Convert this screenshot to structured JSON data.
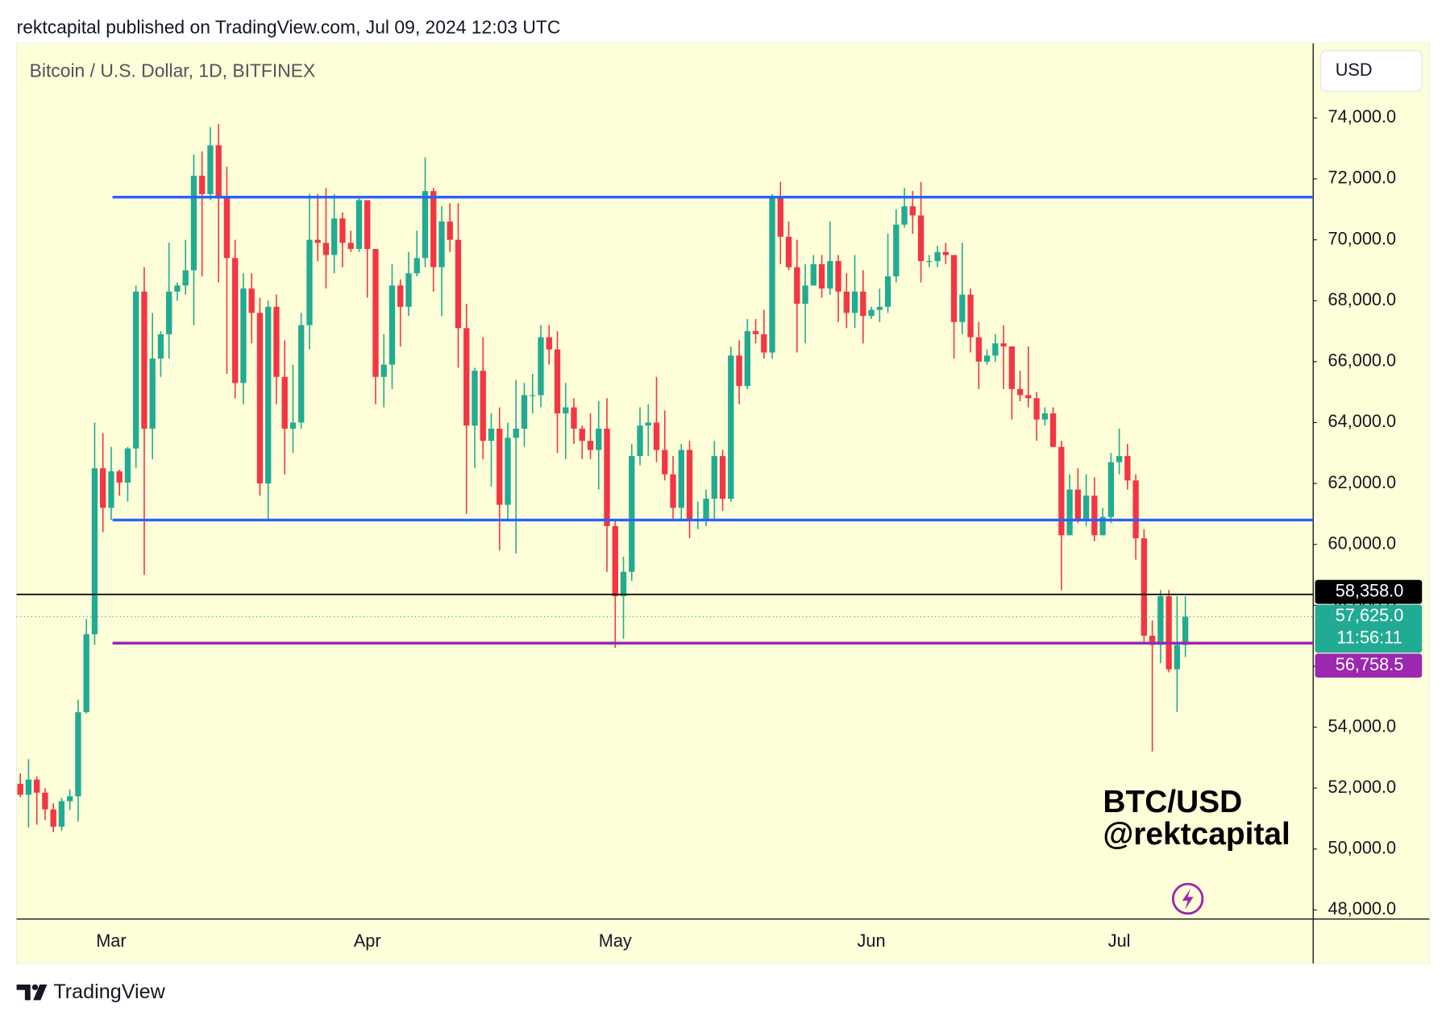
{
  "header": "rektcapital published on TradingView.com, Jul 09, 2024 12:03 UTC",
  "footer": "TradingView",
  "chart_data": {
    "type": "candlestick",
    "title": "Bitcoin / U.S. Dollar, 1D, BITFINEX",
    "currency": "USD",
    "annotations": [
      "BTC/USD",
      "@rektcapital"
    ],
    "up_color": "#22ab94",
    "down_color": "#f23645",
    "background": "#fefed8",
    "grid": false,
    "categories": [
      null,
      null,
      null,
      null,
      null,
      null,
      null,
      null,
      null,
      null,
      null,
      "Mar",
      null,
      null,
      null,
      null,
      null,
      null,
      null,
      null,
      null,
      null,
      null,
      null,
      null,
      null,
      null,
      null,
      null,
      null,
      null,
      null,
      null,
      null,
      null,
      null,
      null,
      null,
      null,
      null,
      null,
      null,
      "Apr",
      null,
      null,
      null,
      null,
      null,
      null,
      null,
      null,
      null,
      null,
      null,
      null,
      null,
      null,
      null,
      null,
      null,
      null,
      null,
      null,
      null,
      null,
      null,
      null,
      null,
      null,
      null,
      null,
      null,
      "May",
      null,
      null,
      null,
      null,
      null,
      null,
      null,
      null,
      null,
      null,
      null,
      null,
      null,
      null,
      null,
      null,
      null,
      null,
      null,
      null,
      null,
      null,
      null,
      null,
      null,
      null,
      null,
      null,
      null,
      null,
      "Jun",
      null,
      null,
      null,
      null,
      null,
      null,
      null,
      null,
      null,
      null,
      null,
      null,
      null,
      null,
      null,
      null,
      null,
      null,
      null,
      null,
      null,
      null,
      null,
      null,
      null,
      null,
      null,
      null,
      null,
      "Jul",
      null,
      null,
      null,
      null,
      null,
      null,
      null,
      null
    ],
    "open": [
      52140,
      51780,
      52280,
      51850,
      51300,
      50730,
      51570,
      51730,
      54490,
      57050,
      62500,
      61200,
      62400,
      62030,
      63150,
      68300,
      63800,
      66100,
      66900,
      68300,
      68500,
      69000,
      72100,
      71500,
      73100,
      71400,
      69400,
      65300,
      68400,
      67600,
      62000,
      67800,
      65500,
      63800,
      64000,
      67200,
      70000,
      69900,
      69500,
      70700,
      69900,
      69700,
      71300,
      69700,
      65500,
      65900,
      68500,
      67800,
      68900,
      69400,
      71600,
      69100,
      70600,
      70000,
      67100,
      63900,
      65700,
      63400,
      63800,
      61300,
      63500,
      63800,
      64900,
      64900,
      66800,
      66400,
      64300,
      64500,
      63800,
      63400,
      63100,
      63800,
      60600,
      58300,
      59100,
      62900,
      63900,
      64000,
      63100,
      62300,
      61200,
      63100,
      60800,
      60800,
      61500,
      62900,
      61500,
      66200,
      65200,
      67000,
      66900,
      66300,
      71400,
      70100,
      69100,
      67900,
      68500,
      69200,
      68400,
      69300,
      68300,
      67600,
      68300,
      67500,
      67700,
      67800,
      68800,
      70500,
      71100,
      70800,
      69300,
      69300,
      69600,
      69500,
      67300,
      68200,
      66800,
      66000,
      66200,
      66600,
      66500,
      65100,
      64900,
      64800,
      64100,
      64300,
      63200,
      60300,
      61800,
      60800,
      61600,
      60300,
      60900,
      62700,
      62900,
      62100,
      60200,
      57000,
      56700,
      58300,
      55900,
      56700
    ],
    "high": [
      52480,
      52950,
      52380,
      52000,
      51500,
      51680,
      51950,
      54900,
      57550,
      64000,
      63650,
      63200,
      62450,
      63200,
      68500,
      69100,
      67600,
      67000,
      69900,
      68600,
      70000,
      72800,
      72900,
      73700,
      73800,
      72400,
      70000,
      68900,
      68900,
      68100,
      68000,
      68200,
      66700,
      65900,
      67600,
      71500,
      71500,
      71700,
      71500,
      70900,
      70300,
      71400,
      71300,
      69700,
      66900,
      69200,
      68700,
      69600,
      70300,
      72700,
      71700,
      71100,
      71200,
      71200,
      67900,
      65800,
      66800,
      64300,
      64500,
      64000,
      65400,
      65300,
      65600,
      67200,
      67200,
      67000,
      65300,
      64800,
      63900,
      64300,
      64700,
      64800,
      60800,
      59600,
      63300,
      64500,
      64600,
      65500,
      64400,
      62900,
      63300,
      63400,
      61400,
      61800,
      63400,
      63100,
      66500,
      66700,
      67400,
      67400,
      67700,
      71500,
      71900,
      70600,
      70000,
      69200,
      69500,
      69500,
      70600,
      69500,
      68900,
      69500,
      69000,
      67800,
      68400,
      70200,
      71000,
      71700,
      71600,
      71900,
      69500,
      69800,
      69900,
      69500,
      69900,
      68400,
      67300,
      66400,
      66900,
      67200,
      66500,
      65700,
      66500,
      65000,
      64500,
      64500,
      63400,
      62300,
      62500,
      62300,
      62200,
      61200,
      63000,
      63800,
      63300,
      62300,
      60500,
      57500,
      58500,
      58500,
      58300,
      58300
    ],
    "low": [
      51700,
      50700,
      50800,
      50950,
      50550,
      50600,
      51280,
      50900,
      54450,
      56700,
      60400,
      60800,
      61600,
      61400,
      62500,
      59000,
      62800,
      65500,
      66100,
      68000,
      68200,
      67200,
      68800,
      71300,
      68600,
      65600,
      64800,
      64600,
      66600,
      61600,
      60800,
      64600,
      62300,
      63000,
      63800,
      66400,
      69300,
      68400,
      68900,
      69100,
      69600,
      69600,
      68100,
      64600,
      64500,
      65100,
      66500,
      67500,
      68800,
      69100,
      68300,
      67500,
      69600,
      65800,
      61000,
      62500,
      62800,
      61900,
      59800,
      60800,
      59700,
      63200,
      64300,
      64500,
      65900,
      63000,
      62800,
      63300,
      62800,
      62800,
      61800,
      59100,
      56600,
      56900,
      58800,
      62600,
      62900,
      62700,
      62100,
      60800,
      60800,
      60200,
      60500,
      60600,
      60800,
      61100,
      61400,
      64600,
      65100,
      66600,
      66100,
      66100,
      69200,
      69000,
      66300,
      66600,
      68500,
      68100,
      68200,
      67300,
      67100,
      67100,
      66600,
      67400,
      67300,
      67600,
      68600,
      70400,
      70200,
      68600,
      69100,
      69100,
      69200,
      66100,
      66900,
      66300,
      65100,
      65900,
      66000,
      65100,
      64100,
      64700,
      64500,
      63400,
      63900,
      63200,
      58500,
      60300,
      60700,
      60600,
      60100,
      60300,
      60700,
      62300,
      61800,
      59500,
      56800,
      53200,
      56100,
      55800,
      54500,
      56300
    ],
    "close": [
      51780,
      52280,
      51850,
      51300,
      50730,
      51570,
      51730,
      54490,
      57050,
      62500,
      61200,
      62400,
      62030,
      63150,
      68300,
      63800,
      66100,
      66900,
      68300,
      68500,
      69000,
      72100,
      71500,
      73100,
      71400,
      69400,
      65300,
      68400,
      67600,
      62000,
      67800,
      65500,
      63800,
      64000,
      67200,
      70000,
      69900,
      69500,
      70700,
      69900,
      69700,
      71300,
      69700,
      65500,
      65900,
      68500,
      67800,
      68900,
      69400,
      71600,
      69100,
      70600,
      70000,
      67100,
      63900,
      65700,
      63400,
      63800,
      61300,
      63500,
      63800,
      64900,
      64900,
      66800,
      66400,
      64300,
      64500,
      63800,
      63400,
      63100,
      63800,
      60600,
      58300,
      59100,
      62900,
      63900,
      64000,
      63100,
      62300,
      61200,
      63100,
      60800,
      60800,
      61500,
      62900,
      61500,
      66200,
      65200,
      67000,
      66900,
      66300,
      71400,
      70100,
      69100,
      67900,
      68500,
      69200,
      68400,
      69300,
      68300,
      67600,
      68300,
      67500,
      67700,
      67800,
      68800,
      70500,
      71100,
      70800,
      69300,
      69300,
      69600,
      69500,
      67300,
      68200,
      66800,
      66000,
      66200,
      66600,
      66500,
      65100,
      64900,
      64800,
      64100,
      64300,
      63200,
      60300,
      61800,
      60800,
      61600,
      60300,
      60900,
      62700,
      62900,
      62100,
      60200,
      57000,
      56700,
      58300,
      55900,
      56700,
      57625
    ],
    "ylim": [
      47700,
      76450
    ],
    "yticks": [
      {
        "value": 48000,
        "label": "48,000.0"
      },
      {
        "value": 50000,
        "label": "50,000.0"
      },
      {
        "value": 52000,
        "label": "52,000.0"
      },
      {
        "value": 54000,
        "label": "54,000.0"
      },
      {
        "value": 56000,
        "label": "56,000.0"
      },
      {
        "value": 58000,
        "label": "58,000.0"
      },
      {
        "value": 60000,
        "label": "60,000.0"
      },
      {
        "value": 62000,
        "label": "62,000.0"
      },
      {
        "value": 64000,
        "label": "64,000.0"
      },
      {
        "value": 66000,
        "label": "66,000.0"
      },
      {
        "value": 68000,
        "label": "68,000.0"
      },
      {
        "value": 70000,
        "label": "70,000.0"
      },
      {
        "value": 72000,
        "label": "72,000.0"
      },
      {
        "value": 74000,
        "label": "74,000.0"
      }
    ],
    "levels": [
      {
        "value": 71400,
        "color": "#2962ff",
        "extend": "right"
      },
      {
        "value": 60800,
        "color": "#2962ff",
        "extend": "right"
      },
      {
        "value": 56758.5,
        "color": "#9c27b0",
        "extend": "right",
        "label": "56,758.5"
      },
      {
        "value": 58358,
        "color": "#000000",
        "extend": "both",
        "label": "58,358.0"
      }
    ],
    "last_price": {
      "value": 57625,
      "label": "57,625.0",
      "countdown": "11:56:11",
      "color": "#22ab94"
    }
  }
}
